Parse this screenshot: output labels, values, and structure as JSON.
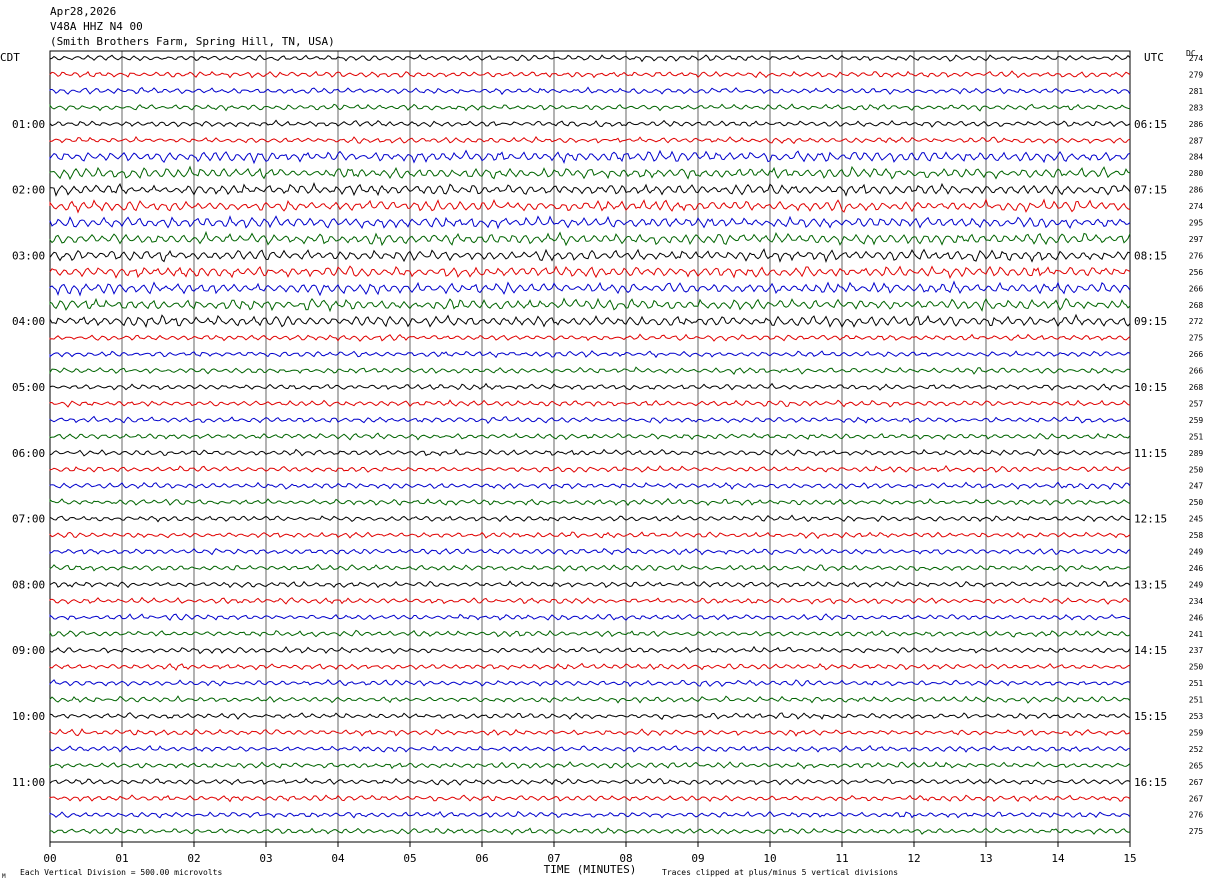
{
  "header": {
    "date": "Apr28,2026",
    "station": "V48A HHZ N4 00",
    "location": "(Smith Brothers Farm, Spring Hill, TN, USA)"
  },
  "chart_data": {
    "type": "line",
    "left_axis_label": "CDT",
    "right_axis_label": "UTC",
    "dc_label": "DC",
    "xlabel": "TIME (MINUTES)",
    "xlim": [
      0,
      15
    ],
    "x_ticks": [
      "00",
      "01",
      "02",
      "03",
      "04",
      "05",
      "06",
      "07",
      "08",
      "09",
      "10",
      "11",
      "12",
      "13",
      "14",
      "15"
    ],
    "left_time_labels": [
      "01:00",
      "02:00",
      "03:00",
      "04:00",
      "05:00",
      "06:00",
      "07:00",
      "08:00",
      "09:00",
      "10:00",
      "11:00"
    ],
    "right_time_labels": [
      "06:15",
      "07:15",
      "08:15",
      "09:15",
      "10:15",
      "11:15",
      "12:15",
      "13:15",
      "14:15",
      "15:15",
      "16:15"
    ],
    "trace_colors": [
      "#000000",
      "#e00000",
      "#0000cc",
      "#006400"
    ],
    "dc_offsets": [
      274,
      279,
      281,
      283,
      286,
      287,
      284,
      280,
      286,
      274,
      295,
      297,
      276,
      256,
      266,
      268,
      272,
      275,
      266,
      266,
      268,
      257,
      259,
      251,
      289,
      250,
      247,
      250,
      245,
      258,
      249,
      246,
      249,
      234,
      246,
      241,
      237,
      250,
      251,
      251,
      253,
      259,
      252,
      265,
      267,
      267,
      276,
      275
    ],
    "footer_left": "Each Vertical Division =  500.00 microvolts",
    "footer_right": "Traces clipped at plus/minus 5 vertical divisions",
    "corner_mark": "M"
  }
}
